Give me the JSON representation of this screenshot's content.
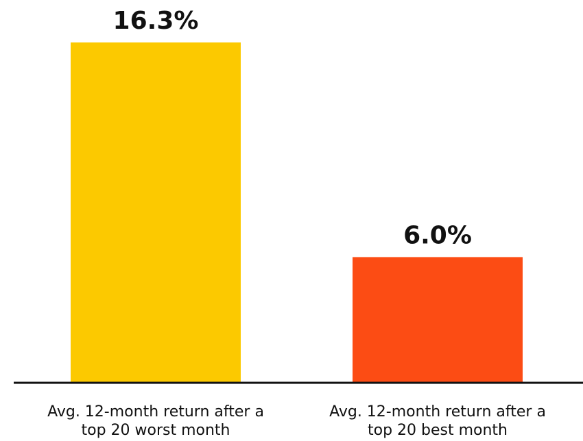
{
  "chart_data": {
    "type": "bar",
    "categories": [
      "Avg. 12-month return after a top 20 worst month",
      "Avg. 12-month return after a top 20 best month"
    ],
    "values": [
      16.3,
      6.0
    ],
    "value_labels": [
      "16.3%",
      "6.0%"
    ],
    "colors": [
      "#fcc900",
      "#fc4c14"
    ]
  }
}
